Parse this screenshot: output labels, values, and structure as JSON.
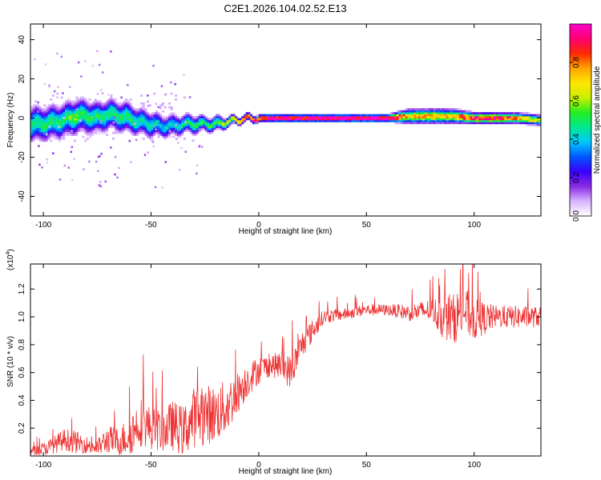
{
  "title": "C2E1.2026.104.02.52.E13",
  "chart_data": [
    {
      "type": "heatmap",
      "title": "C2E1.2026.104.02.52.E13",
      "xlabel": "Height of straight line (km)",
      "ylabel": "Frequency (Hz)",
      "xlim": [
        -106,
        131
      ],
      "ylim": [
        -50,
        48
      ],
      "x_ticks": [
        -100,
        -50,
        0,
        50,
        100
      ],
      "x_tick_labels": [
        "-100",
        "-50",
        "0",
        "50",
        "100"
      ],
      "y_ticks": [
        -40,
        -20,
        0,
        20,
        40
      ],
      "y_tick_labels": [
        "-40",
        "-20",
        "0",
        "20",
        "40"
      ],
      "colorbar": {
        "label": "Normalized spectral amplitude",
        "range": [
          0,
          1
        ],
        "ticks": [
          0.0,
          0.2,
          0.4,
          0.6,
          0.8
        ],
        "tick_labels": [
          "0.0",
          "0.2",
          "0.4",
          "0.6",
          "0.8"
        ],
        "colors": [
          "#ffffff",
          "#d9b3ff",
          "#8a2be2",
          "#3a00ff",
          "#0057ff",
          "#00c8ff",
          "#00e890",
          "#22ee22",
          "#c8f000",
          "#ffe600",
          "#ffa500",
          "#ff2a00",
          "#ff0070",
          "#ff00cc"
        ]
      },
      "ridge": {
        "x": [
          -106,
          -100,
          -95,
          -90,
          -85,
          -80,
          -75,
          -70,
          -65,
          -60,
          -55,
          -50,
          -45,
          -40,
          -35,
          -30,
          -25,
          -20,
          -15,
          -10,
          -5,
          0,
          10,
          20,
          40,
          60,
          70,
          80,
          90,
          100,
          110,
          120,
          131
        ],
        "frequency": [
          -3,
          -3,
          -2,
          -1,
          1,
          1,
          0,
          2,
          1,
          0,
          -2,
          -3,
          -4,
          -4,
          -3,
          -3,
          -3,
          -3,
          -2,
          -1,
          0,
          0,
          0,
          0,
          0,
          0,
          1,
          1,
          1,
          0,
          0,
          0,
          -1
        ],
        "amplitude": [
          0.45,
          0.5,
          0.5,
          0.5,
          0.55,
          0.5,
          0.5,
          0.5,
          0.5,
          0.5,
          0.45,
          0.45,
          0.4,
          0.4,
          0.45,
          0.5,
          0.5,
          0.55,
          0.6,
          0.7,
          0.8,
          0.9,
          0.95,
          0.95,
          1.0,
          1.0,
          0.7,
          0.75,
          0.7,
          0.9,
          0.9,
          0.75,
          0.6
        ],
        "spread_hz": [
          10,
          9,
          9,
          9,
          9,
          9,
          8,
          8,
          8,
          8,
          7,
          7,
          6,
          6,
          5,
          5,
          4,
          4,
          3,
          2,
          2,
          2,
          2,
          2,
          2,
          2,
          4,
          4,
          4,
          3,
          3,
          3,
          3
        ]
      }
    },
    {
      "type": "line",
      "xlabel": "Height of straight line (km)",
      "ylabel": "SNR (10 * v/v)",
      "y_scale_label": "(x10",
      "y_scale_exponent": "4",
      "y_scale_suffix": ")",
      "xlim": [
        -106,
        131
      ],
      "ylim": [
        0,
        1.38
      ],
      "x_ticks": [
        -100,
        -50,
        0,
        50,
        100
      ],
      "x_tick_labels": [
        "-100",
        "-50",
        "0",
        "50",
        "100"
      ],
      "y_ticks": [
        0.2,
        0.4,
        0.6,
        0.8,
        1.0,
        1.2
      ],
      "y_tick_labels": [
        "0.2",
        "0.4",
        "0.6",
        "0.8",
        "1.0",
        "1.2"
      ],
      "color": "#ee3333",
      "series": [
        {
          "name": "SNR",
          "x": [
            -106,
            -100,
            -95,
            -90,
            -85,
            -80,
            -75,
            -70,
            -65,
            -60,
            -55,
            -50,
            -45,
            -40,
            -35,
            -30,
            -25,
            -20,
            -15,
            -10,
            -5,
            0,
            5,
            10,
            15,
            20,
            25,
            30,
            40,
            50,
            60,
            70,
            80,
            85,
            90,
            95,
            100,
            110,
            120,
            131
          ],
          "y": [
            0.03,
            0.05,
            0.08,
            0.12,
            0.1,
            0.08,
            0.06,
            0.12,
            0.1,
            0.15,
            0.25,
            0.2,
            0.18,
            0.22,
            0.18,
            0.28,
            0.3,
            0.3,
            0.35,
            0.45,
            0.55,
            0.62,
            0.65,
            0.65,
            0.6,
            0.8,
            0.9,
            1.0,
            1.02,
            1.05,
            1.05,
            1.03,
            1.05,
            1.0,
            0.98,
            1.05,
            0.98,
            1.0,
            1.0,
            1.0
          ],
          "noise": [
            0.03,
            0.05,
            0.06,
            0.08,
            0.08,
            0.06,
            0.06,
            0.1,
            0.1,
            0.15,
            0.18,
            0.15,
            0.15,
            0.18,
            0.18,
            0.22,
            0.22,
            0.2,
            0.2,
            0.15,
            0.12,
            0.1,
            0.08,
            0.1,
            0.12,
            0.1,
            0.08,
            0.05,
            0.04,
            0.04,
            0.04,
            0.06,
            0.08,
            0.15,
            0.18,
            0.18,
            0.15,
            0.08,
            0.08,
            0.07
          ]
        }
      ]
    }
  ]
}
